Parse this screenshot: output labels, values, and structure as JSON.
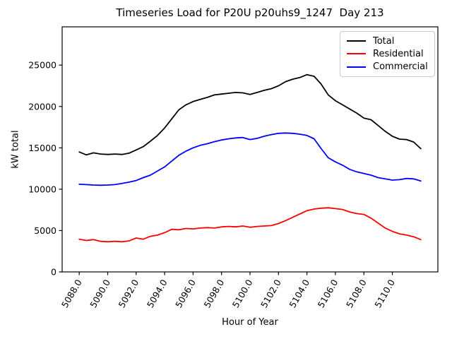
{
  "chart_data": {
    "type": "line",
    "title": "Timeseries Load for P20U p20uhs9_1247  Day 213",
    "xlabel": "Hour of Year",
    "ylabel": "kW total",
    "xlim": [
      5086.8,
      5113.2
    ],
    "ylim": [
      0,
      29630
    ],
    "grid": false,
    "legend_position": "upper right",
    "x_ticks": [
      5088,
      5090,
      5092,
      5094,
      5096,
      5098,
      5100,
      5102,
      5104,
      5106,
      5108,
      5110
    ],
    "x_tick_labels": [
      "5088.0",
      "5090.0",
      "5092.0",
      "5094.0",
      "5096.0",
      "5098.0",
      "5100.0",
      "5102.0",
      "5104.0",
      "5106.0",
      "5108.0",
      "5110.0"
    ],
    "y_ticks": [
      0,
      5000,
      10000,
      15000,
      20000,
      25000
    ],
    "y_tick_labels": [
      "0",
      "5000",
      "10000",
      "15000",
      "20000",
      "25000"
    ],
    "x": [
      5088.0,
      5088.5,
      5089.0,
      5089.5,
      5090.0,
      5090.5,
      5091.0,
      5091.5,
      5092.0,
      5092.5,
      5093.0,
      5093.5,
      5094.0,
      5094.5,
      5095.0,
      5095.5,
      5096.0,
      5096.5,
      5097.0,
      5097.5,
      5098.0,
      5098.5,
      5099.0,
      5099.5,
      5100.0,
      5100.5,
      5101.0,
      5101.5,
      5102.0,
      5102.5,
      5103.0,
      5103.5,
      5104.0,
      5104.5,
      5105.0,
      5105.5,
      5106.0,
      5106.5,
      5107.0,
      5107.5,
      5108.0,
      5108.5,
      5109.0,
      5109.5,
      5110.0,
      5110.5,
      5111.0,
      5111.5,
      5112.0
    ],
    "series": [
      {
        "name": "Total",
        "color": "#000000",
        "values": [
          14500,
          14150,
          14400,
          14250,
          14200,
          14250,
          14200,
          14350,
          14750,
          15150,
          15800,
          16500,
          17400,
          18500,
          19600,
          20200,
          20600,
          20850,
          21100,
          21400,
          21500,
          21600,
          21700,
          21650,
          21450,
          21700,
          21950,
          22150,
          22500,
          23000,
          23300,
          23500,
          23850,
          23650,
          22700,
          21400,
          20700,
          20200,
          19700,
          19200,
          18600,
          18400,
          17700,
          17000,
          16400,
          16050,
          16000,
          15700,
          14900
        ]
      },
      {
        "name": "Residential",
        "color": "#ff0000",
        "values": [
          3950,
          3800,
          3900,
          3700,
          3650,
          3700,
          3650,
          3750,
          4100,
          3950,
          4300,
          4450,
          4750,
          5150,
          5100,
          5250,
          5200,
          5300,
          5350,
          5300,
          5450,
          5500,
          5450,
          5550,
          5400,
          5500,
          5550,
          5600,
          5850,
          6200,
          6600,
          7000,
          7400,
          7600,
          7700,
          7750,
          7650,
          7550,
          7250,
          7050,
          6950,
          6500,
          5900,
          5300,
          4900,
          4600,
          4450,
          4250,
          3900
        ]
      },
      {
        "name": "Commercial",
        "color": "#0000ff",
        "values": [
          10600,
          10550,
          10500,
          10480,
          10500,
          10550,
          10700,
          10850,
          11050,
          11400,
          11700,
          12200,
          12700,
          13400,
          14100,
          14600,
          15000,
          15300,
          15500,
          15750,
          15950,
          16100,
          16200,
          16250,
          16000,
          16150,
          16400,
          16600,
          16750,
          16800,
          16750,
          16650,
          16500,
          16100,
          14900,
          13800,
          13300,
          12900,
          12400,
          12100,
          11900,
          11700,
          11400,
          11250,
          11100,
          11150,
          11300,
          11250,
          11000
        ]
      }
    ]
  }
}
